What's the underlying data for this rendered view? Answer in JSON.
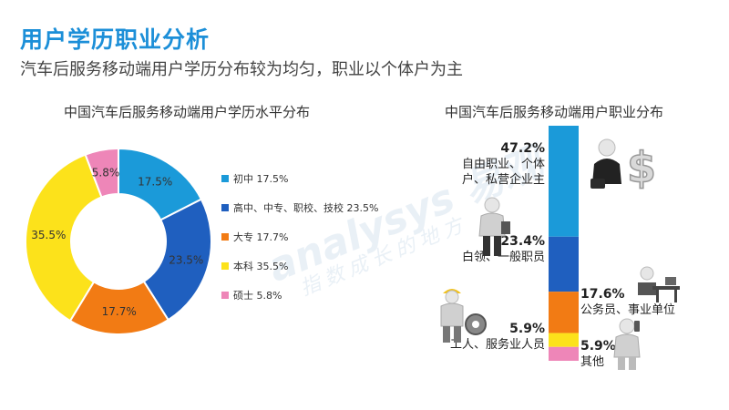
{
  "header": {
    "title": "用户学历职业分析",
    "subtitle": "汽车后服务移动端用户学历分布较为均匀，职业以个体户为主"
  },
  "watermark": {
    "brand": "analysys 易观",
    "slogan": "指数成长的地方"
  },
  "chart_data": [
    {
      "type": "pie",
      "title": "中国汽车后服务移动端用户学历水平分布",
      "categories": [
        "初中",
        "高中、中专、职校、技校",
        "大专",
        "本科",
        "硕士"
      ],
      "values": [
        17.5,
        23.5,
        17.7,
        35.5,
        5.8
      ],
      "labels": [
        "17.5%",
        "23.5%",
        "17.7%",
        "35.5%",
        "5.8%"
      ],
      "colors": [
        "#1b9ad9",
        "#1f5fbf",
        "#f27b14",
        "#fce21b",
        "#ee86b8"
      ],
      "legend_position": "right",
      "legend": [
        {
          "name": "初中",
          "value": "17.5%"
        },
        {
          "name": "高中、中专、职校、技校",
          "value": "23.5%"
        },
        {
          "name": "大专",
          "value": "17.7%"
        },
        {
          "name": "本科",
          "value": "35.5%"
        },
        {
          "name": "硕士",
          "value": "5.8%"
        }
      ]
    },
    {
      "type": "bar",
      "stacked": true,
      "title": "中国汽车后服务移动端用户职业分布",
      "categories": [
        "自由职业、个体户、私营企业主",
        "白领、一般职员",
        "公务员、事业单位",
        "工人、服务业人员",
        "其他"
      ],
      "values": [
        47.2,
        23.4,
        17.6,
        5.9,
        5.9
      ],
      "colors": [
        "#1b9ad9",
        "#1f5fbf",
        "#f27b14",
        "#fce21b",
        "#ee86b8"
      ],
      "labels": [
        {
          "pct": "47.2%",
          "lines": [
            "自由职业、个体",
            "户、私营企业主"
          ]
        },
        {
          "pct": "23.4%",
          "lines": [
            "白领、一般职员"
          ]
        },
        {
          "pct": "17.6%",
          "lines": [
            "公务员、事业单位"
          ]
        },
        {
          "pct": "5.9%",
          "lines": [
            "工人、服务业人员"
          ]
        },
        {
          "pct": "5.9%",
          "lines": [
            "其他"
          ]
        }
      ]
    }
  ],
  "icons": [
    "businessman-dollar-icon",
    "worker-with-gear-icon",
    "office-worker-icon",
    "official-desk-icon",
    "phone-person-icon"
  ]
}
